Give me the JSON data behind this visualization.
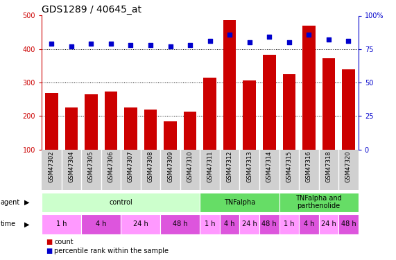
{
  "title": "GDS1289 / 40645_at",
  "samples": [
    "GSM47302",
    "GSM47304",
    "GSM47305",
    "GSM47306",
    "GSM47307",
    "GSM47308",
    "GSM47309",
    "GSM47310",
    "GSM47311",
    "GSM47312",
    "GSM47313",
    "GSM47314",
    "GSM47315",
    "GSM47316",
    "GSM47318",
    "GSM47320"
  ],
  "bar_values": [
    270,
    225,
    265,
    273,
    225,
    220,
    185,
    213,
    315,
    487,
    307,
    382,
    326,
    470,
    373,
    340
  ],
  "percentile_values": [
    79,
    77,
    79,
    79,
    78,
    78,
    77,
    78,
    81,
    86,
    80,
    84,
    80,
    86,
    82,
    81
  ],
  "bar_color": "#cc0000",
  "percentile_color": "#0000cc",
  "ylim_left": [
    100,
    500
  ],
  "ylim_right": [
    0,
    100
  ],
  "yticks_left": [
    100,
    200,
    300,
    400,
    500
  ],
  "yticks_right": [
    0,
    25,
    50,
    75,
    100
  ],
  "yticklabels_right": [
    "0",
    "25",
    "50",
    "75",
    "100%"
  ],
  "grid_values": [
    200,
    300,
    400
  ],
  "sample_bg_color": "#d0d0d0",
  "agent_groups": [
    {
      "label": "control",
      "start": 0,
      "end": 8,
      "color": "#ccffcc"
    },
    {
      "label": "TNFalpha",
      "start": 8,
      "end": 12,
      "color": "#66dd66"
    },
    {
      "label": "TNFalpha and\nparthenolide",
      "start": 12,
      "end": 16,
      "color": "#66dd66"
    }
  ],
  "time_groups": [
    {
      "label": "1 h",
      "start": 0,
      "end": 2,
      "color": "#ff99ff"
    },
    {
      "label": "4 h",
      "start": 2,
      "end": 4,
      "color": "#dd55dd"
    },
    {
      "label": "24 h",
      "start": 4,
      "end": 6,
      "color": "#ff99ff"
    },
    {
      "label": "48 h",
      "start": 6,
      "end": 8,
      "color": "#dd55dd"
    },
    {
      "label": "1 h",
      "start": 8,
      "end": 9,
      "color": "#ff99ff"
    },
    {
      "label": "4 h",
      "start": 9,
      "end": 10,
      "color": "#dd55dd"
    },
    {
      "label": "24 h",
      "start": 10,
      "end": 11,
      "color": "#ff99ff"
    },
    {
      "label": "48 h",
      "start": 11,
      "end": 12,
      "color": "#dd55dd"
    },
    {
      "label": "1 h",
      "start": 12,
      "end": 13,
      "color": "#ff99ff"
    },
    {
      "label": "4 h",
      "start": 13,
      "end": 14,
      "color": "#dd55dd"
    },
    {
      "label": "24 h",
      "start": 14,
      "end": 15,
      "color": "#ff99ff"
    },
    {
      "label": "48 h",
      "start": 15,
      "end": 16,
      "color": "#dd55dd"
    }
  ],
  "legend_count_color": "#cc0000",
  "legend_percentile_color": "#0000cc",
  "title_fontsize": 10,
  "tick_fontsize": 7,
  "annot_fontsize": 7,
  "label_fontsize": 7
}
